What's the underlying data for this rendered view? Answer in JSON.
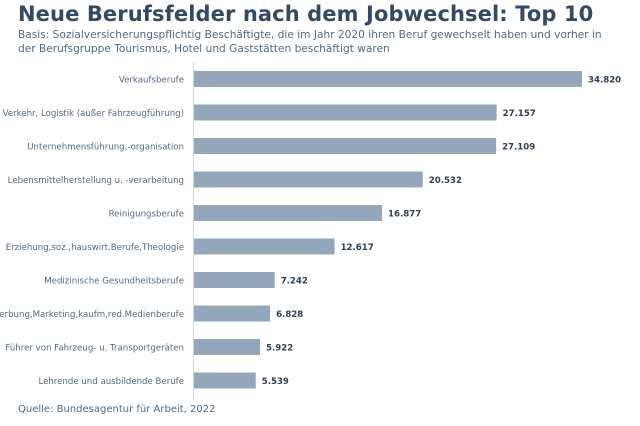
{
  "header": {
    "title": "Neue Berufsfelder nach dem Jobwechsel: Top 10",
    "subtitle": "Basis: Sozialversicherungspflichtig Beschäftigte, die im Jahr 2020 ihren Beruf gewechselt haben und vorher in der Berufsgruppe Tourismus, Hotel und Gaststätten beschäftigt waren"
  },
  "footer": {
    "source": "Quelle: Bundesagentur für Arbeit, 2022"
  },
  "colors": {
    "bar": "#94a7ba",
    "axis": "#cfd6de",
    "value_label": "#2f3f50",
    "category_label": "#53677c"
  },
  "chart_data": {
    "type": "bar",
    "orientation": "horizontal",
    "title": "Neue Berufsfelder nach dem Jobwechsel: Top 10",
    "xlabel": "",
    "ylabel": "",
    "xlim": [
      0,
      34820
    ],
    "grid": false,
    "legend": "none",
    "categories": [
      "Verkaufsberufe",
      "Verkehr, Logistik (außer Fahrzeugführung)",
      "Unternehmensführung,-organisation",
      "Lebensmittelherstellung u. -verarbeitung",
      "Reinigungsberufe",
      "Erziehung,soz.,hauswirt.Berufe,Theologie",
      "Medizinische Gesundheitsberufe",
      "Werbung,Marketing,kaufm,red.Medienberufe",
      "Führer von Fahrzeug- u. Transportgeräten",
      "Lehrende und ausbildende Berufe"
    ],
    "values": [
      34820,
      27157,
      27109,
      20532,
      16877,
      12617,
      7242,
      6828,
      5922,
      5539
    ],
    "value_labels": [
      "34.820",
      "27.157",
      "27.109",
      "20.532",
      "16.877",
      "12.617",
      "7.242",
      "6.828",
      "5.922",
      "5.539"
    ]
  }
}
